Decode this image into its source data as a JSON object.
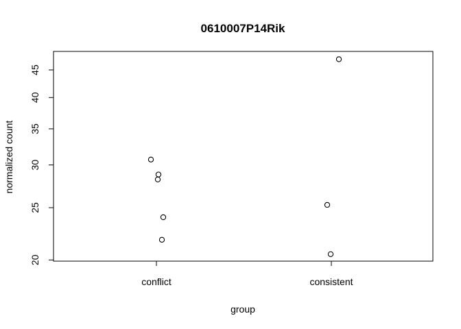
{
  "chart_data": {
    "type": "scatter",
    "title": "0610007P14Rik",
    "xlabel": "group",
    "ylabel": "normalized count",
    "categories": [
      "conflict",
      "consistent"
    ],
    "y_scale": "log",
    "ylim": [
      19.9,
      48.7
    ],
    "yticks": [
      20,
      25,
      30,
      35,
      40,
      45
    ],
    "grid": false,
    "legend": "none",
    "series": [
      {
        "points": [
          {
            "group": "conflict",
            "y": 30.7
          },
          {
            "group": "conflict",
            "y": 28.8
          },
          {
            "group": "conflict",
            "y": 28.2
          },
          {
            "group": "conflict",
            "y": 24.0
          },
          {
            "group": "conflict",
            "y": 21.8
          },
          {
            "group": "consistent",
            "y": 47.1
          },
          {
            "group": "consistent",
            "y": 25.3
          },
          {
            "group": "consistent",
            "y": 20.5
          }
        ]
      }
    ]
  }
}
